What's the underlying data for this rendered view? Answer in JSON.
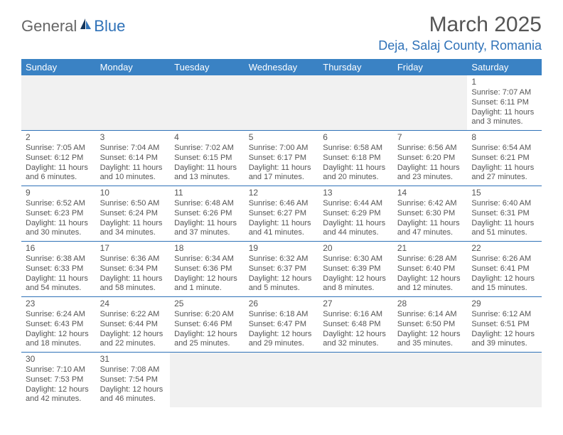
{
  "logo": {
    "general": "General",
    "blue": "Blue"
  },
  "title": "March 2025",
  "location": "Deja, Salaj County, Romania",
  "headers": [
    "Sunday",
    "Monday",
    "Tuesday",
    "Wednesday",
    "Thursday",
    "Friday",
    "Saturday"
  ],
  "colors": {
    "header_bg": "#3a82c4",
    "accent": "#2f72b8",
    "text": "#555555",
    "blank_bg": "#f1f1f1"
  },
  "weeks": [
    [
      {
        "blank": true
      },
      {
        "blank": true
      },
      {
        "blank": true
      },
      {
        "blank": true
      },
      {
        "blank": true
      },
      {
        "blank": true
      },
      {
        "n": "1",
        "sunrise": "Sunrise: 7:07 AM",
        "sunset": "Sunset: 6:11 PM",
        "day1": "Daylight: 11 hours",
        "day2": "and 3 minutes."
      }
    ],
    [
      {
        "n": "2",
        "sunrise": "Sunrise: 7:05 AM",
        "sunset": "Sunset: 6:12 PM",
        "day1": "Daylight: 11 hours",
        "day2": "and 6 minutes."
      },
      {
        "n": "3",
        "sunrise": "Sunrise: 7:04 AM",
        "sunset": "Sunset: 6:14 PM",
        "day1": "Daylight: 11 hours",
        "day2": "and 10 minutes."
      },
      {
        "n": "4",
        "sunrise": "Sunrise: 7:02 AM",
        "sunset": "Sunset: 6:15 PM",
        "day1": "Daylight: 11 hours",
        "day2": "and 13 minutes."
      },
      {
        "n": "5",
        "sunrise": "Sunrise: 7:00 AM",
        "sunset": "Sunset: 6:17 PM",
        "day1": "Daylight: 11 hours",
        "day2": "and 17 minutes."
      },
      {
        "n": "6",
        "sunrise": "Sunrise: 6:58 AM",
        "sunset": "Sunset: 6:18 PM",
        "day1": "Daylight: 11 hours",
        "day2": "and 20 minutes."
      },
      {
        "n": "7",
        "sunrise": "Sunrise: 6:56 AM",
        "sunset": "Sunset: 6:20 PM",
        "day1": "Daylight: 11 hours",
        "day2": "and 23 minutes."
      },
      {
        "n": "8",
        "sunrise": "Sunrise: 6:54 AM",
        "sunset": "Sunset: 6:21 PM",
        "day1": "Daylight: 11 hours",
        "day2": "and 27 minutes."
      }
    ],
    [
      {
        "n": "9",
        "sunrise": "Sunrise: 6:52 AM",
        "sunset": "Sunset: 6:23 PM",
        "day1": "Daylight: 11 hours",
        "day2": "and 30 minutes."
      },
      {
        "n": "10",
        "sunrise": "Sunrise: 6:50 AM",
        "sunset": "Sunset: 6:24 PM",
        "day1": "Daylight: 11 hours",
        "day2": "and 34 minutes."
      },
      {
        "n": "11",
        "sunrise": "Sunrise: 6:48 AM",
        "sunset": "Sunset: 6:26 PM",
        "day1": "Daylight: 11 hours",
        "day2": "and 37 minutes."
      },
      {
        "n": "12",
        "sunrise": "Sunrise: 6:46 AM",
        "sunset": "Sunset: 6:27 PM",
        "day1": "Daylight: 11 hours",
        "day2": "and 41 minutes."
      },
      {
        "n": "13",
        "sunrise": "Sunrise: 6:44 AM",
        "sunset": "Sunset: 6:29 PM",
        "day1": "Daylight: 11 hours",
        "day2": "and 44 minutes."
      },
      {
        "n": "14",
        "sunrise": "Sunrise: 6:42 AM",
        "sunset": "Sunset: 6:30 PM",
        "day1": "Daylight: 11 hours",
        "day2": "and 47 minutes."
      },
      {
        "n": "15",
        "sunrise": "Sunrise: 6:40 AM",
        "sunset": "Sunset: 6:31 PM",
        "day1": "Daylight: 11 hours",
        "day2": "and 51 minutes."
      }
    ],
    [
      {
        "n": "16",
        "sunrise": "Sunrise: 6:38 AM",
        "sunset": "Sunset: 6:33 PM",
        "day1": "Daylight: 11 hours",
        "day2": "and 54 minutes."
      },
      {
        "n": "17",
        "sunrise": "Sunrise: 6:36 AM",
        "sunset": "Sunset: 6:34 PM",
        "day1": "Daylight: 11 hours",
        "day2": "and 58 minutes."
      },
      {
        "n": "18",
        "sunrise": "Sunrise: 6:34 AM",
        "sunset": "Sunset: 6:36 PM",
        "day1": "Daylight: 12 hours",
        "day2": "and 1 minute."
      },
      {
        "n": "19",
        "sunrise": "Sunrise: 6:32 AM",
        "sunset": "Sunset: 6:37 PM",
        "day1": "Daylight: 12 hours",
        "day2": "and 5 minutes."
      },
      {
        "n": "20",
        "sunrise": "Sunrise: 6:30 AM",
        "sunset": "Sunset: 6:39 PM",
        "day1": "Daylight: 12 hours",
        "day2": "and 8 minutes."
      },
      {
        "n": "21",
        "sunrise": "Sunrise: 6:28 AM",
        "sunset": "Sunset: 6:40 PM",
        "day1": "Daylight: 12 hours",
        "day2": "and 12 minutes."
      },
      {
        "n": "22",
        "sunrise": "Sunrise: 6:26 AM",
        "sunset": "Sunset: 6:41 PM",
        "day1": "Daylight: 12 hours",
        "day2": "and 15 minutes."
      }
    ],
    [
      {
        "n": "23",
        "sunrise": "Sunrise: 6:24 AM",
        "sunset": "Sunset: 6:43 PM",
        "day1": "Daylight: 12 hours",
        "day2": "and 18 minutes."
      },
      {
        "n": "24",
        "sunrise": "Sunrise: 6:22 AM",
        "sunset": "Sunset: 6:44 PM",
        "day1": "Daylight: 12 hours",
        "day2": "and 22 minutes."
      },
      {
        "n": "25",
        "sunrise": "Sunrise: 6:20 AM",
        "sunset": "Sunset: 6:46 PM",
        "day1": "Daylight: 12 hours",
        "day2": "and 25 minutes."
      },
      {
        "n": "26",
        "sunrise": "Sunrise: 6:18 AM",
        "sunset": "Sunset: 6:47 PM",
        "day1": "Daylight: 12 hours",
        "day2": "and 29 minutes."
      },
      {
        "n": "27",
        "sunrise": "Sunrise: 6:16 AM",
        "sunset": "Sunset: 6:48 PM",
        "day1": "Daylight: 12 hours",
        "day2": "and 32 minutes."
      },
      {
        "n": "28",
        "sunrise": "Sunrise: 6:14 AM",
        "sunset": "Sunset: 6:50 PM",
        "day1": "Daylight: 12 hours",
        "day2": "and 35 minutes."
      },
      {
        "n": "29",
        "sunrise": "Sunrise: 6:12 AM",
        "sunset": "Sunset: 6:51 PM",
        "day1": "Daylight: 12 hours",
        "day2": "and 39 minutes."
      }
    ],
    [
      {
        "n": "30",
        "sunrise": "Sunrise: 7:10 AM",
        "sunset": "Sunset: 7:53 PM",
        "day1": "Daylight: 12 hours",
        "day2": "and 42 minutes."
      },
      {
        "n": "31",
        "sunrise": "Sunrise: 7:08 AM",
        "sunset": "Sunset: 7:54 PM",
        "day1": "Daylight: 12 hours",
        "day2": "and 46 minutes."
      },
      {
        "blank": true
      },
      {
        "blank": true
      },
      {
        "blank": true
      },
      {
        "blank": true
      },
      {
        "blank": true
      }
    ]
  ]
}
